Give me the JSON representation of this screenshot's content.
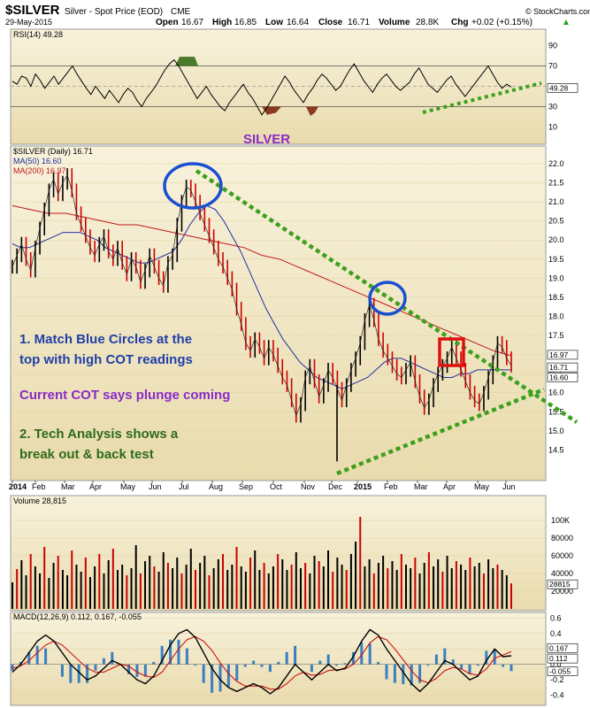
{
  "header": {
    "symbol": "$SILVER",
    "name": "Silver - Spot Price (EOD)",
    "exchange": "CME",
    "date": "29-May-2015",
    "open_label": "Open",
    "open": "16.67",
    "high_label": "High",
    "high": "16.85",
    "low_label": "Low",
    "low": "16.64",
    "close_label": "Close",
    "close": "16.71",
    "volume_label": "Volume",
    "volume": "28.8K",
    "chg_label": "Chg",
    "chg": "+0.02 (+0.15%)",
    "chg_arrow": "▲",
    "watermark": "© StockCharts.com"
  },
  "annotations": {
    "silver": "SILVER",
    "line1a": "1. Match Blue Circles at the",
    "line1b": "top with high COT readings",
    "line2": "Current COT says plunge coming",
    "line3a": "2. Tech Analysis shows a",
    "line3b": "break out & back test"
  },
  "colors": {
    "panel_bg_top": "#f7f0d8",
    "panel_bg_bottom": "#e8d9a8",
    "price_up": "#000000",
    "price_down": "#cc0000",
    "ma50": "#1f2f9e",
    "ma200": "#c01818",
    "trendline": "#3ca01c",
    "circle": "#1a4fd0",
    "square": "#e01010",
    "rsi": "#000000",
    "rsi_overbought_fill": "#4a7a2a",
    "rsi_oversold_fill": "#8a3a20",
    "volume_up": "#000000",
    "volume_down": "#cc0000",
    "macd_line": "#000000",
    "signal_line": "#d01010",
    "histogram": "#3a7fc0"
  },
  "chart_data": [
    {
      "id": "rsi",
      "type": "line",
      "title": "RSI(14) 49.28",
      "ylim": [
        0,
        100
      ],
      "yticks": [
        10,
        30,
        50,
        70,
        90
      ],
      "current_label": "49.28",
      "levels": [
        70,
        30
      ],
      "values": [
        55,
        52,
        60,
        58,
        50,
        62,
        56,
        48,
        54,
        60,
        52,
        58,
        64,
        70,
        62,
        55,
        48,
        42,
        50,
        44,
        38,
        46,
        40,
        34,
        42,
        48,
        44,
        36,
        30,
        38,
        44,
        50,
        58,
        66,
        72,
        76,
        70,
        62,
        54,
        46,
        38,
        44,
        50,
        42,
        36,
        30,
        26,
        34,
        40,
        46,
        52,
        44,
        38,
        30,
        22,
        28,
        36,
        44,
        52,
        60,
        54,
        46,
        40,
        34,
        42,
        48,
        56,
        62,
        58,
        52,
        46,
        50,
        58,
        66,
        72,
        64,
        56,
        50,
        44,
        52,
        58,
        62,
        56,
        50,
        46,
        50,
        54,
        62,
        68,
        60,
        52,
        48,
        44,
        50,
        56,
        60,
        52,
        46,
        40,
        46,
        52,
        58,
        64,
        70,
        62,
        54,
        48,
        52,
        49.28
      ]
    },
    {
      "id": "price",
      "type": "line",
      "title": "$SILVER (Daily) 16.71",
      "legend": [
        {
          "name": "MA(50) 16.60"
        },
        {
          "name": "MA(200) 16.97"
        }
      ],
      "ylim": [
        14.0,
        22.3
      ],
      "yticks": [
        14.5,
        15.0,
        15.5,
        16.0,
        16.5,
        17.0,
        17.5,
        18.0,
        18.5,
        19.0,
        19.5,
        20.0,
        20.5,
        21.0,
        21.5,
        22.0
      ],
      "x_labels": [
        "2014",
        "Feb",
        "Mar",
        "Apr",
        "May",
        "Jun",
        "Jul",
        "Aug",
        "Sep",
        "Oct",
        "Nov",
        "Dec",
        "2015",
        "Feb",
        "Mar",
        "Apr",
        "May",
        "Jun"
      ],
      "current_labels": [
        "16.97",
        "16.71",
        "16.60"
      ],
      "close": [
        19.3,
        19.6,
        19.9,
        19.5,
        19.2,
        19.8,
        20.3,
        20.8,
        21.3,
        21.6,
        21.2,
        21.5,
        21.7,
        21.3,
        20.7,
        20.4,
        20.1,
        19.8,
        19.6,
        19.9,
        20.1,
        19.7,
        19.5,
        19.8,
        19.4,
        19.1,
        19.5,
        19.3,
        18.9,
        19.2,
        19.6,
        19.3,
        19.0,
        18.8,
        19.4,
        19.6,
        20.4,
        21.0,
        21.4,
        21.3,
        21.0,
        20.7,
        20.4,
        20.1,
        19.8,
        19.5,
        19.3,
        19.0,
        18.7,
        18.2,
        17.8,
        17.3,
        17.1,
        17.4,
        17.2,
        16.9,
        17.2,
        17.0,
        16.7,
        16.4,
        16.2,
        15.8,
        15.4,
        15.7,
        16.4,
        16.7,
        16.3,
        15.9,
        16.2,
        16.6,
        16.4,
        16.1,
        15.8,
        16.2,
        16.6,
        16.9,
        17.3,
        17.9,
        18.3,
        17.9,
        17.4,
        17.1,
        16.9,
        16.7,
        16.5,
        16.4,
        16.6,
        16.8,
        16.3,
        15.9,
        15.6,
        15.8,
        16.2,
        16.5,
        16.7,
        16.9,
        17.2,
        16.9,
        16.6,
        16.3,
        16.0,
        15.8,
        15.7,
        16.0,
        16.4,
        16.8,
        17.3,
        17.2,
        16.9,
        16.71
      ],
      "ma50": [
        19.9,
        19.8,
        19.8,
        19.9,
        20.0,
        20.1,
        20.2,
        20.2,
        20.2,
        20.1,
        20.0,
        19.8,
        19.7,
        19.6,
        19.5,
        19.4,
        19.4,
        19.5,
        19.6,
        19.7,
        20.0,
        20.4,
        20.7,
        20.9,
        20.8,
        20.5,
        20.1,
        19.7,
        19.2,
        18.7,
        18.2,
        17.8,
        17.4,
        17.1,
        16.8,
        16.6,
        16.4,
        16.3,
        16.2,
        16.1,
        16.2,
        16.3,
        16.4,
        16.6,
        16.8,
        16.9,
        16.9,
        16.8,
        16.7,
        16.6,
        16.5,
        16.4,
        16.4,
        16.5,
        16.5,
        16.6,
        16.6,
        16.6,
        16.6,
        16.6
      ],
      "ma200": [
        20.9,
        20.8,
        20.7,
        20.7,
        20.6,
        20.5,
        20.4,
        20.4,
        20.3,
        20.2,
        20.1,
        20.0,
        19.9,
        19.8,
        19.6,
        19.5,
        19.3,
        19.1,
        18.9,
        18.7,
        18.5,
        18.3,
        18.1,
        17.9,
        17.7,
        17.5,
        17.3,
        17.1,
        16.97
      ]
    },
    {
      "id": "volume",
      "type": "bar",
      "title": "Volume 28,815",
      "ylim": [
        0,
        120000
      ],
      "yticks": [
        "20000",
        "40000",
        "60000",
        "80000",
        "100K"
      ],
      "current_label": "28815",
      "values": [
        30,
        45,
        55,
        38,
        62,
        48,
        40,
        70,
        35,
        52,
        60,
        44,
        38,
        66,
        50,
        42,
        58,
        36,
        48,
        62,
        40,
        55,
        68,
        44,
        50,
        38,
        46,
        72,
        40,
        54,
        60,
        48,
        42,
        64,
        52,
        46,
        58,
        40,
        50,
        68,
        44,
        52,
        60,
        38,
        46,
        56,
        62,
        44,
        50,
        70,
        48,
        42,
        58,
        66,
        44,
        52,
        40,
        48,
        62,
        56,
        44,
        50,
        64,
        46,
        52,
        40,
        60,
        54,
        48,
        66,
        42,
        58,
        50,
        44,
        62,
        76,
        104,
        48,
        56,
        40,
        52,
        60,
        46,
        54,
        44,
        62,
        50,
        46,
        58,
        40,
        52,
        64,
        48,
        56,
        42,
        60,
        46,
        54,
        50,
        44,
        58,
        48,
        52,
        40,
        56,
        46,
        50,
        44,
        38,
        28.8
      ]
    },
    {
      "id": "macd",
      "type": "line",
      "title": "MACD(12,26,9) 0.112, 0.167, -0.055",
      "ylim": [
        -0.45,
        0.65
      ],
      "yticks": [
        -0.4,
        -0.2,
        0.0,
        0.2,
        0.4,
        0.6
      ],
      "current_labels": [
        "0.167",
        "0.112",
        "-0.055"
      ],
      "macd": [
        -0.1,
        0.0,
        0.15,
        0.3,
        0.38,
        0.3,
        0.15,
        0.0,
        -0.1,
        -0.2,
        -0.15,
        -0.05,
        0.05,
        0.0,
        -0.1,
        -0.2,
        -0.25,
        -0.15,
        0.05,
        0.25,
        0.4,
        0.45,
        0.35,
        0.15,
        -0.05,
        -0.2,
        -0.3,
        -0.35,
        -0.3,
        -0.25,
        -0.3,
        -0.38,
        -0.3,
        -0.15,
        0.0,
        -0.1,
        -0.2,
        -0.1,
        0.0,
        -0.08,
        -0.05,
        0.1,
        0.3,
        0.45,
        0.38,
        0.2,
        0.05,
        -0.1,
        -0.25,
        -0.35,
        -0.25,
        -0.1,
        0.05,
        0.0,
        -0.1,
        -0.2,
        -0.15,
        0.05,
        0.2,
        0.1,
        0.112
      ],
      "signal": [
        -0.05,
        -0.02,
        0.05,
        0.15,
        0.25,
        0.3,
        0.25,
        0.15,
        0.05,
        -0.05,
        -0.1,
        -0.1,
        -0.05,
        0.0,
        -0.02,
        -0.1,
        -0.15,
        -0.17,
        -0.1,
        0.05,
        0.2,
        0.32,
        0.36,
        0.3,
        0.18,
        0.02,
        -0.12,
        -0.22,
        -0.28,
        -0.28,
        -0.28,
        -0.32,
        -0.32,
        -0.25,
        -0.15,
        -0.1,
        -0.14,
        -0.13,
        -0.08,
        -0.07,
        -0.06,
        0.0,
        0.12,
        0.28,
        0.36,
        0.32,
        0.2,
        0.06,
        -0.08,
        -0.2,
        -0.24,
        -0.18,
        -0.08,
        -0.04,
        -0.06,
        -0.12,
        -0.14,
        -0.06,
        0.08,
        0.12,
        0.167
      ]
    }
  ]
}
